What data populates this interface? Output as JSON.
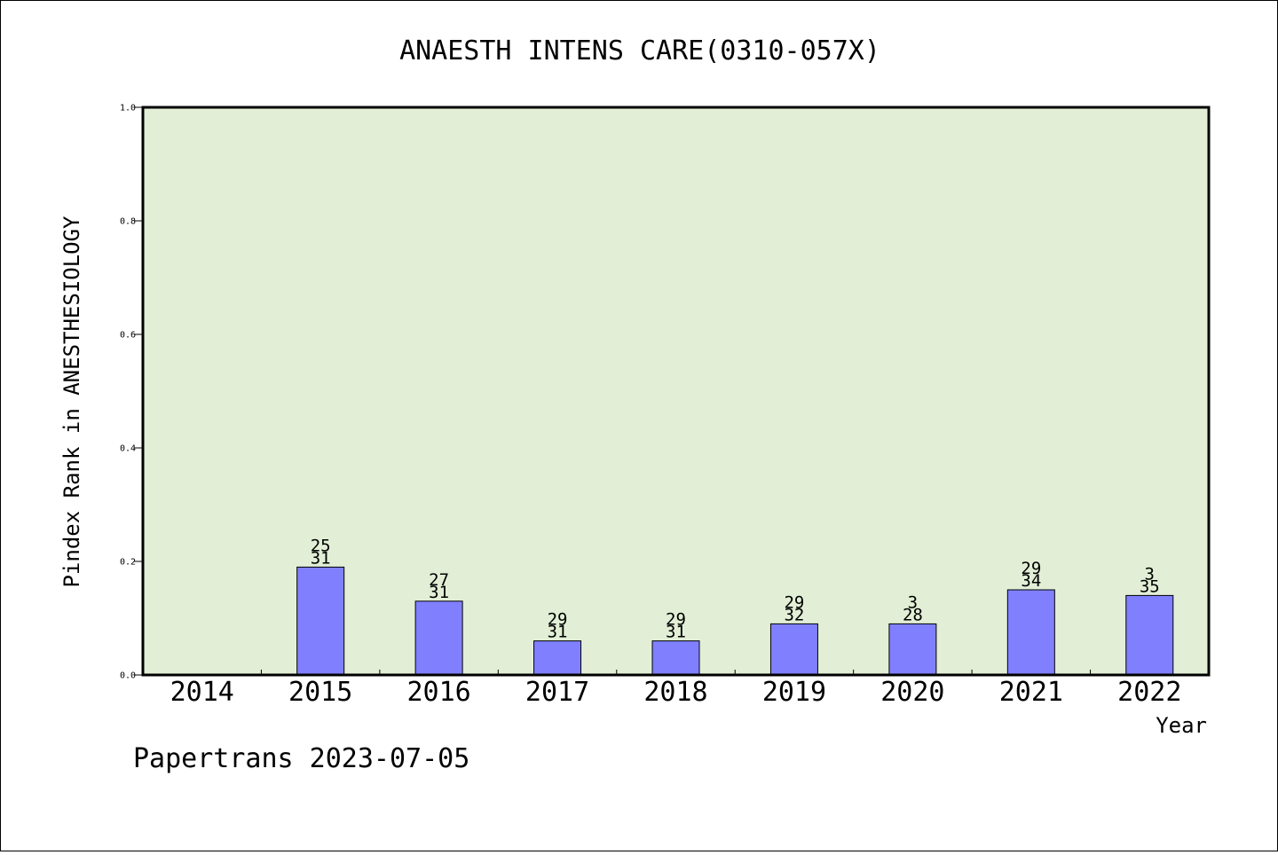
{
  "chart_data": {
    "type": "bar",
    "title": "ANAESTH INTENS CARE(0310-057X)",
    "xlabel": "Year",
    "ylabel": "Pindex Rank in ANESTHESIOLOGY",
    "ylim": [
      0,
      1.0
    ],
    "yticks": [
      "0.0",
      "0.2",
      "0.4",
      "0.6",
      "0.8",
      "1.0"
    ],
    "categories": [
      "2014",
      "2015",
      "2016",
      "2017",
      "2018",
      "2019",
      "2020",
      "2021",
      "2022"
    ],
    "values": [
      null,
      0.19,
      0.13,
      0.06,
      0.06,
      0.09,
      0.09,
      0.15,
      0.14
    ],
    "labels_top": [
      "",
      "25",
      "27",
      "29",
      "29",
      "29",
      "3",
      "29",
      "3"
    ],
    "labels_bottom": [
      "",
      "31",
      "31",
      "31",
      "31",
      "32",
      "28",
      "34",
      "35"
    ],
    "grid": false,
    "colors": {
      "background": "#e2efd6",
      "bar": "#8080ff"
    },
    "footer": "Papertrans 2023-07-05"
  }
}
